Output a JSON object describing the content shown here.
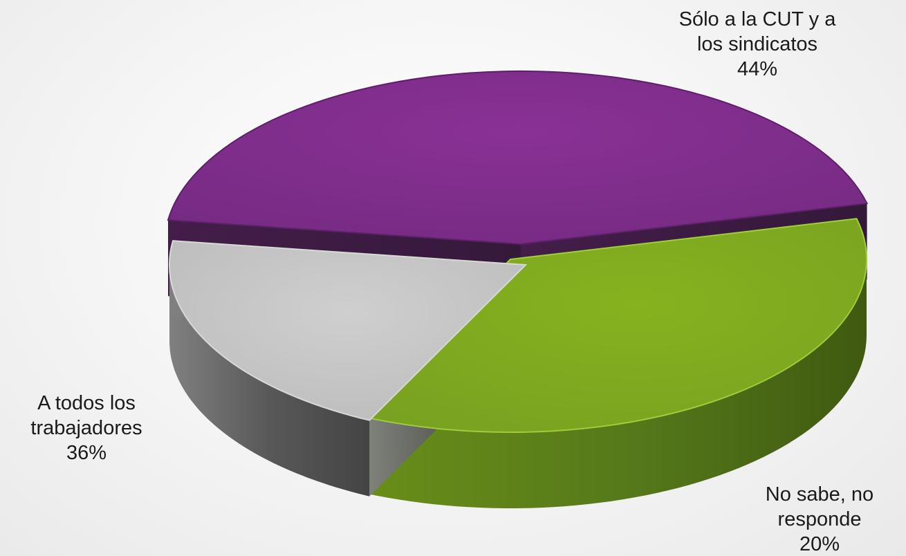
{
  "chart_data": {
    "type": "pie",
    "title": "",
    "slices": [
      {
        "name": "Sólo a la CUT y a los sindicatos",
        "label_lines": [
          "Sólo a la CUT y a",
          "los sindicatos"
        ],
        "value": 44,
        "value_label": "44%",
        "color": "#7b2a85"
      },
      {
        "name": "A todos los trabajadores",
        "label_lines": [
          "A todos los",
          "trabajadores"
        ],
        "value": 36,
        "value_label": "36%",
        "color": "#7aa520"
      },
      {
        "name": "No sabe, no responde",
        "label_lines": [
          "No sabe, no",
          "responde"
        ],
        "value": 20,
        "value_label": "20%",
        "color": "#c6c6c6"
      }
    ],
    "legend": "none",
    "style": "3d-exploded"
  }
}
